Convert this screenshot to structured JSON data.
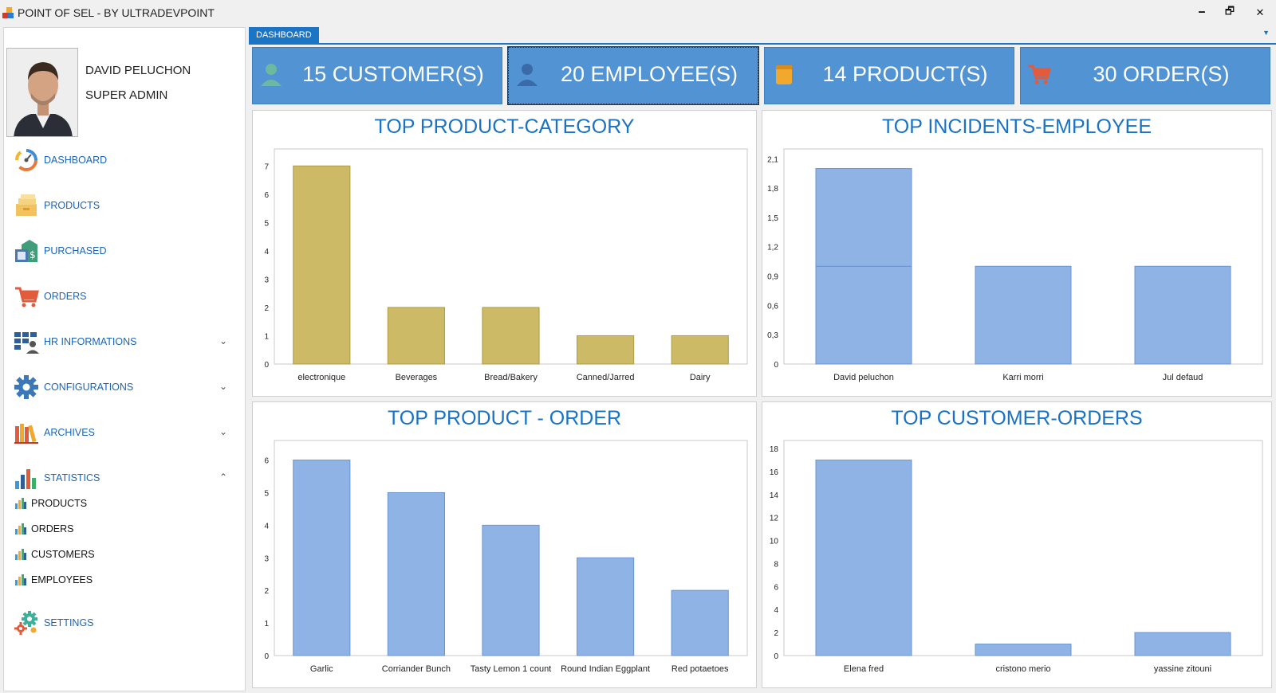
{
  "window": {
    "title": "POINT OF SEL - BY ULTRADEVPOINT",
    "minimize_glyph": "🗕",
    "restore_glyph": "🗗",
    "close_glyph": "✕"
  },
  "user": {
    "name": "DAVID PELUCHON",
    "role": "SUPER ADMIN"
  },
  "sidebar": {
    "items": [
      {
        "label": "DASHBOARD",
        "icon": "speedometer-icon"
      },
      {
        "label": "PRODUCTS",
        "icon": "boxes-icon"
      },
      {
        "label": "PURCHASED",
        "icon": "price-tag-icon"
      },
      {
        "label": "ORDERS",
        "icon": "shopping-cart-icon"
      },
      {
        "label": "HR INFORMATIONS",
        "icon": "hr-people-icon",
        "chevron": "⌄"
      },
      {
        "label": "CONFIGURATIONS",
        "icon": "gear-icon",
        "chevron": "⌄"
      },
      {
        "label": "ARCHIVES",
        "icon": "books-icon",
        "chevron": "⌄"
      },
      {
        "label": "STATISTICS",
        "icon": "bar-chart-icon",
        "chevron": "⌃"
      }
    ],
    "statistics_sub": [
      "PRODUCTS",
      "ORDERS",
      "CUSTOMERS",
      "EMPLOYEES"
    ],
    "settings": {
      "label": "SETTINGS",
      "icon": "gears-icon"
    }
  },
  "tabs": [
    {
      "label": "DASHBOARD"
    }
  ],
  "tab_menu_glyph": "▼",
  "stats": [
    {
      "label": "15 CUSTOMER(S)",
      "icon": "person-icon"
    },
    {
      "label": "20 EMPLOYEE(S)",
      "icon": "person-icon"
    },
    {
      "label": "14 PRODUCT(S)",
      "icon": "product-box-icon"
    },
    {
      "label": "30 ORDER(S)",
      "icon": "shopping-cart-icon"
    }
  ],
  "colors": {
    "accent": "#1c74c4",
    "card": "#5293d4",
    "gold_bar": "#cdba67",
    "blue_bar": "#8fb3e5",
    "cart_red": "#e25b3b"
  },
  "chart_data": [
    {
      "type": "bar",
      "title": "TOP PRODUCT-CATEGORY",
      "categories": [
        "electronique",
        "Beverages",
        "Bread/Bakery",
        "Canned/Jarred",
        "Dairy"
      ],
      "values": [
        7,
        2,
        2,
        1,
        1
      ],
      "ylim": [
        0,
        7.6
      ],
      "yticks": [
        0,
        1,
        2,
        3,
        4,
        5,
        6,
        7
      ],
      "ytick_labels": [
        "0",
        "1",
        "2",
        "3",
        "4",
        "5",
        "6",
        "7"
      ],
      "color": "#cdba67",
      "grid": false
    },
    {
      "type": "bar",
      "title": "TOP INCIDENTS-EMPLOYEE",
      "categories": [
        "David peluchon",
        "Karri morri",
        "Jul defaud"
      ],
      "values": [
        2,
        1,
        1
      ],
      "stacked_segments": [
        [
          1,
          1
        ],
        [
          1
        ],
        [
          1
        ]
      ],
      "ylim": [
        0,
        2.2
      ],
      "yticks": [
        0,
        0.3,
        0.6,
        0.9,
        1.2,
        1.5,
        1.8,
        2.1
      ],
      "ytick_labels": [
        "0",
        "0,3",
        "0,6",
        "0,9",
        "1,2",
        "1,5",
        "1,8",
        "2,1"
      ],
      "color": "#8fb3e5",
      "grid": false
    },
    {
      "type": "bar",
      "title": "TOP PRODUCT - ORDER",
      "categories": [
        "Garlic",
        "Corriander Bunch",
        "Tasty Lemon 1 count",
        "Round Indian Eggplant",
        "Red potaetoes"
      ],
      "values": [
        6,
        5,
        4,
        3,
        2
      ],
      "ylim": [
        0,
        6.6
      ],
      "yticks": [
        0,
        1,
        2,
        3,
        4,
        5,
        6
      ],
      "ytick_labels": [
        "0",
        "1",
        "2",
        "3",
        "4",
        "5",
        "6"
      ],
      "color": "#8fb3e5",
      "grid": false
    },
    {
      "type": "bar",
      "title": "TOP CUSTOMER-ORDERS",
      "categories": [
        "Elena fred",
        "cristono merio",
        "yassine zitouni"
      ],
      "values": [
        17,
        1,
        2
      ],
      "ylim": [
        0,
        18.7
      ],
      "yticks": [
        0,
        2,
        4,
        6,
        8,
        10,
        12,
        14,
        16,
        18
      ],
      "ytick_labels": [
        "0",
        "2",
        "4",
        "6",
        "8",
        "10",
        "12",
        "14",
        "16",
        "18"
      ],
      "color": "#8fb3e5",
      "grid": false
    }
  ]
}
